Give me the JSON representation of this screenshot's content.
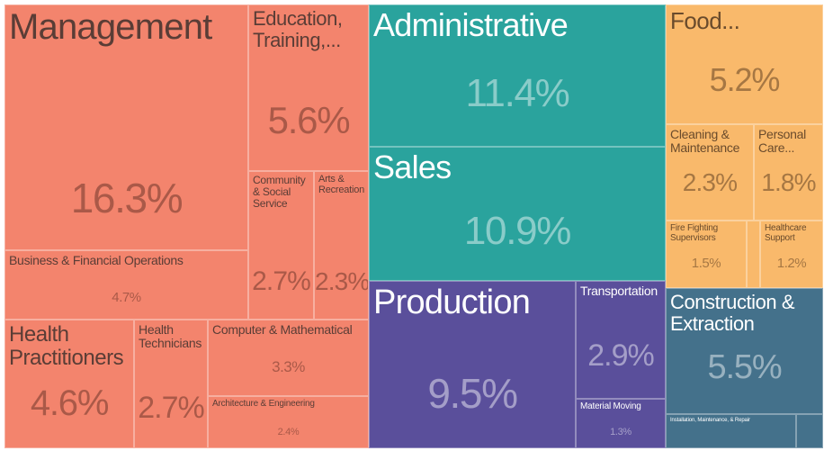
{
  "chart_data": {
    "type": "treemap",
    "groups": [
      {
        "color": "#f3846d",
        "categories": [
          "Management",
          "Education, Training,...",
          "Community & Social Service",
          "Arts & Recreation",
          "Business & Financial Operations",
          "Health Practitioners",
          "Health Technicians",
          "Computer & Mathematical",
          "Architecture & Engineering"
        ],
        "values": [
          16.3,
          5.6,
          2.7,
          2.3,
          4.7,
          4.6,
          2.7,
          3.3,
          2.4
        ],
        "value_labels": [
          "16.3%",
          "5.6%",
          "2.7%",
          "2.3%",
          "4.7%",
          "4.6%",
          "2.7%",
          "3.3%",
          "2.4%"
        ]
      },
      {
        "color": "#2aa39d",
        "categories": [
          "Administrative",
          "Sales"
        ],
        "values": [
          11.4,
          10.9
        ],
        "value_labels": [
          "11.4%",
          "10.9%"
        ]
      },
      {
        "color": "#5a4f9b",
        "categories": [
          "Production",
          "Transportation",
          "Material Moving"
        ],
        "values": [
          9.5,
          2.9,
          1.3
        ],
        "value_labels": [
          "9.5%",
          "2.9%",
          "1.3%"
        ]
      },
      {
        "color": "#f9b96b",
        "categories": [
          "Food...",
          "Cleaning & Maintenance",
          "Personal Care...",
          "Fire Fighting Supervisors",
          null,
          "Healthcare Support"
        ],
        "values": [
          5.2,
          2.3,
          1.8,
          1.5,
          0.3,
          1.2
        ],
        "value_labels": [
          "5.2%",
          "2.3%",
          "1.8%",
          "1.5%",
          null,
          "1.2%"
        ]
      },
      {
        "color": "#44718b",
        "categories": [
          "Construction & Extraction",
          "Installation, Maintenance, & Repair",
          null
        ],
        "values": [
          5.5,
          1.1,
          0.3
        ],
        "value_labels": [
          "5.5%",
          null,
          null
        ]
      }
    ]
  }
}
